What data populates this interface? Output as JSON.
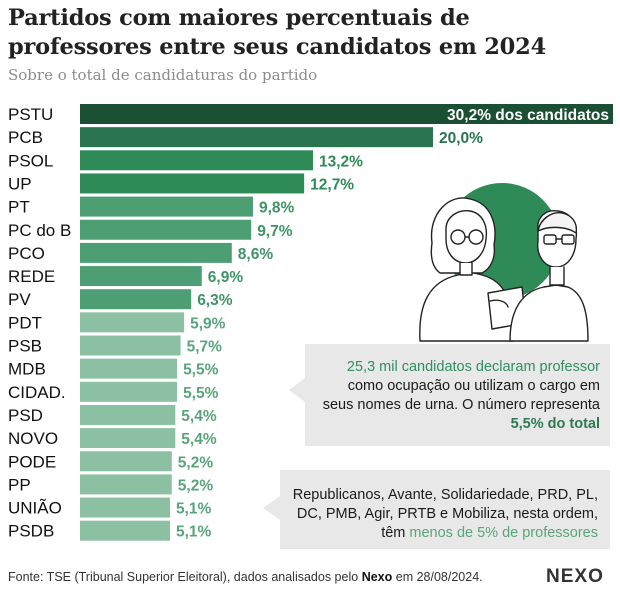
{
  "title": "Partidos com maiores percentuais de professores entre seus candidatos em 2024",
  "subtitle": "Sobre o total de candidaturas do partido",
  "chart_data": {
    "type": "bar",
    "orientation": "horizontal",
    "categories": [
      "PSTU",
      "PCB",
      "PSOL",
      "UP",
      "PT",
      "PC do B",
      "PCO",
      "REDE",
      "PV",
      "PDT",
      "PSB",
      "MDB",
      "CIDAD.",
      "PSD",
      "NOVO",
      "PODE",
      "PP",
      "UNIÃO",
      "PSDB"
    ],
    "values": [
      30.2,
      20.0,
      13.2,
      12.7,
      9.8,
      9.7,
      8.6,
      6.9,
      6.3,
      5.9,
      5.7,
      5.5,
      5.5,
      5.4,
      5.4,
      5.2,
      5.2,
      5.1,
      5.1
    ],
    "value_labels": [
      "30,2% dos candidatos",
      "20,0%",
      "13,2%",
      "12,7%",
      "9,8%",
      "9,7%",
      "8,6%",
      "6,9%",
      "6,3%",
      "5,9%",
      "5,7%",
      "5,5%",
      "5,5%",
      "5,4%",
      "5,4%",
      "5,2%",
      "5,2%",
      "5,1%",
      "5,1%"
    ],
    "bar_colors": [
      "#1b4f33",
      "#2a7550",
      "#2e8b57",
      "#2e8b57",
      "#4e9e74",
      "#4e9e74",
      "#4e9e74",
      "#4e9e74",
      "#4e9e74",
      "#8cc0a3",
      "#8cc0a3",
      "#8cc0a3",
      "#8cc0a3",
      "#8cc0a3",
      "#8cc0a3",
      "#8cc0a3",
      "#8cc0a3",
      "#8cc0a3",
      "#8cc0a3"
    ],
    "label_colors": [
      "#ffffff",
      "#2a7550",
      "#2e8b57",
      "#2e8b57",
      "#3f9467",
      "#3f9467",
      "#3f9467",
      "#3f9467",
      "#3f9467",
      "#5aa47c",
      "#5aa47c",
      "#5aa47c",
      "#5aa47c",
      "#5aa47c",
      "#5aa47c",
      "#5aa47c",
      "#5aa47c",
      "#5aa47c",
      "#5aa47c"
    ],
    "xlim": [
      0,
      30.2
    ],
    "grid": false,
    "legend": "none"
  },
  "annotations": {
    "box1": {
      "prefix": "25,3 mil candidatos declaram professor",
      "middle": "como ocupação ou utilizam o cargo em seus nomes de urna. O número representa",
      "highlight": "5,5% do total"
    },
    "box2": {
      "text": "Republicanos, Avante, Solidariedade, PRD, PL, DC, PMB, Agir, PRTB e Mobiliza, nesta ordem, têm",
      "highlight": "menos de 5% de professores"
    }
  },
  "illustration": {
    "icon": "teachers-illustration",
    "circle_color": "#2e8b57"
  },
  "footer": {
    "source_prefix": "Fonte: TSE (Tribunal Superior Eleitoral), dados analisados pelo",
    "source_brand": "Nexo",
    "source_suffix": "em 28/08/2024.",
    "logo": "NEXO"
  }
}
